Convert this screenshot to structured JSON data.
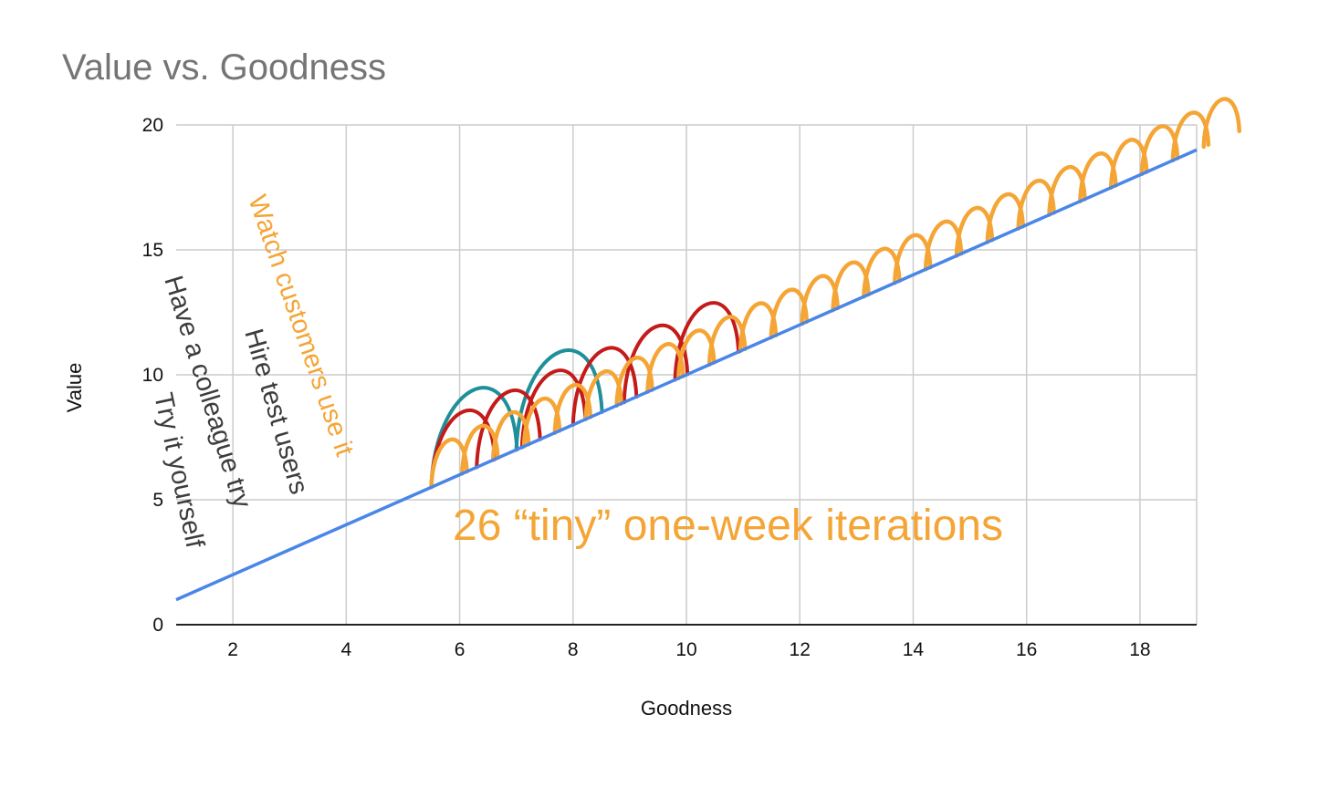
{
  "chart_data": {
    "type": "line",
    "title": "Value vs. Goodness",
    "xlabel": "Goodness",
    "ylabel": "Value",
    "xlim": [
      1,
      19
    ],
    "ylim": [
      0,
      20
    ],
    "x_ticks": [
      "2",
      "4",
      "6",
      "8",
      "10",
      "12",
      "14",
      "16",
      "18"
    ],
    "y_ticks": [
      "0",
      "5",
      "10",
      "15",
      "20"
    ],
    "grid": true,
    "series": [
      {
        "color": "#4a86e8",
        "x": [
          1,
          19
        ],
        "y": [
          1,
          19
        ]
      }
    ],
    "annotations": [
      {
        "text": "Try it yourself",
        "color": "#3c3c3c"
      },
      {
        "text": "Have a colleague try",
        "color": "#3c3c3c"
      },
      {
        "text": "Hire test users",
        "color": "#3c3c3c"
      },
      {
        "text": "Watch customers use it",
        "color": "#f4a535"
      },
      {
        "text": "26 “tiny” one-week iterations",
        "color": "#f4a535"
      }
    ],
    "iteration_loops": [
      {
        "color": "#1f8f9a",
        "starts": [
          5.5,
          7.0
        ]
      },
      {
        "color": "#c41a1a",
        "starts": [
          5.5,
          6.3,
          7.1,
          8.0,
          8.9,
          9.8
        ]
      },
      {
        "color": "#f4a535",
        "count": 26,
        "start": 5.5,
        "step": 0.545
      }
    ]
  }
}
